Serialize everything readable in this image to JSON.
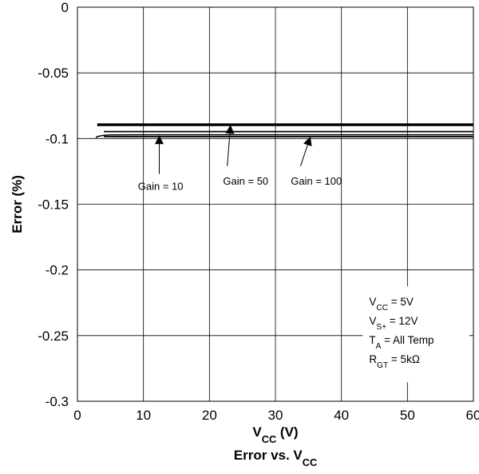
{
  "chart_data": {
    "type": "line",
    "title": "Error vs. VCC",
    "title_parts": {
      "main": "Error vs. V",
      "sub": "CC"
    },
    "xlabel": "VCC (V)",
    "xlabel_parts": {
      "main": "V",
      "sub": "CC",
      "rest": " (V)"
    },
    "ylabel": "Error (%)",
    "xlim": [
      0,
      60
    ],
    "ylim": [
      -0.3,
      0
    ],
    "x_ticks": [
      0,
      10,
      20,
      30,
      40,
      50,
      60
    ],
    "x_tick_labels": [
      "0",
      "10",
      "20",
      "30",
      "40",
      "50",
      "60"
    ],
    "y_ticks": [
      0,
      -0.05,
      -0.1,
      -0.15,
      -0.2,
      -0.25,
      -0.3
    ],
    "y_tick_labels": [
      "0",
      "-0.05",
      "-0.1",
      "-0.15",
      "-0.2",
      "-0.25",
      "-0.3"
    ],
    "grid": true,
    "series": [
      {
        "name": "Gain = 10",
        "color": "#000000",
        "x": [
          2.8,
          3,
          4,
          5,
          10,
          20,
          30,
          40,
          50,
          60
        ],
        "y": [
          -0.0995,
          -0.0985,
          -0.0975,
          -0.0972,
          -0.0971,
          -0.0971,
          -0.0971,
          -0.0971,
          -0.0971,
          -0.0971
        ]
      },
      {
        "name": "Gain = 50",
        "color": "#000000",
        "x": [
          4,
          60
        ],
        "y": [
          -0.0947,
          -0.0947
        ]
      },
      {
        "name": "Gain = 100",
        "color": "#000000",
        "x": [
          4,
          60
        ],
        "y": [
          -0.0985,
          -0.0985
        ]
      },
      {
        "name": "",
        "color": "#000000",
        "x": [
          3,
          60
        ],
        "y": [
          -0.0895,
          -0.0895
        ]
      }
    ],
    "annotations": [
      {
        "text": "Gain = 10",
        "arrow_to": [
          12.4,
          -0.0975
        ],
        "arrow_from": [
          12.4,
          -0.127
        ],
        "label_at": [
          12.6,
          -0.136
        ]
      },
      {
        "text": "Gain = 50",
        "arrow_to": [
          23.2,
          -0.0895
        ],
        "arrow_from": [
          22.7,
          -0.121
        ],
        "label_at": [
          25.5,
          -0.132
        ]
      },
      {
        "text": "Gain = 100",
        "arrow_to": [
          35.3,
          -0.0985
        ],
        "arrow_from": [
          33.8,
          -0.121
        ],
        "label_at": [
          36.2,
          -0.132
        ]
      }
    ],
    "conditions": [
      {
        "main": "V",
        "sub": "CC",
        "rest": " = 5V"
      },
      {
        "main": "V",
        "sub": "S+",
        "rest": " = 12V"
      },
      {
        "main": "T",
        "sub": "A",
        "rest": " = All Temp"
      },
      {
        "main": "R",
        "sub": "GT",
        "rest": " = 5kΩ"
      }
    ]
  }
}
